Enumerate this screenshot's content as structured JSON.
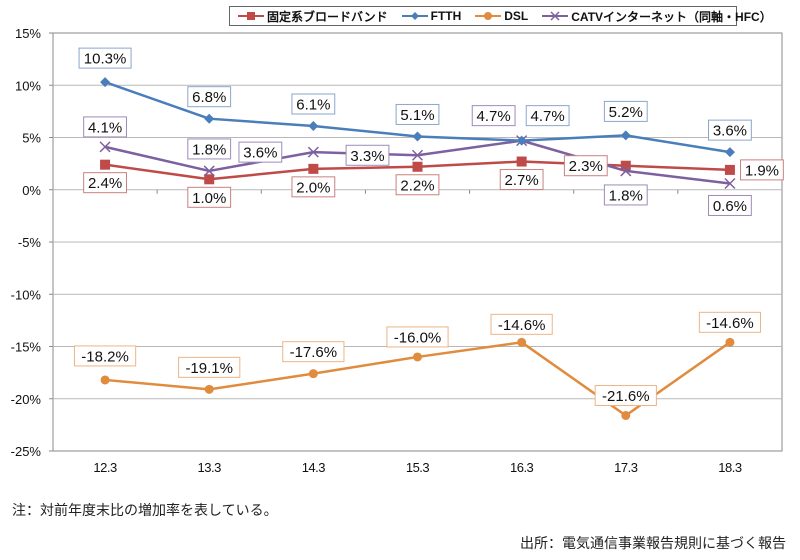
{
  "chart_data": {
    "type": "line",
    "title": "",
    "xlabel": "",
    "ylabel": "",
    "categories": [
      "12.3",
      "13.3",
      "14.3",
      "15.3",
      "16.3",
      "17.3",
      "18.3"
    ],
    "ylim": [
      -25,
      15
    ],
    "y_ticks": [
      15,
      10,
      5,
      0,
      -5,
      -10,
      -15,
      -20,
      -25
    ],
    "y_tick_labels": [
      "15%",
      "10%",
      "5%",
      "0%",
      "-5%",
      "-10%",
      "-15%",
      "-20%",
      "-25%"
    ],
    "grid": true,
    "legend_position": "top",
    "series": [
      {
        "name": "固定系ブロードバンド",
        "color": "#be4b48",
        "marker": "square",
        "values": [
          2.4,
          1.0,
          2.0,
          2.2,
          2.7,
          2.3,
          1.9
        ],
        "labels": [
          "2.4%",
          "1.0%",
          "2.0%",
          "2.2%",
          "2.7%",
          "2.3%",
          "1.9%"
        ]
      },
      {
        "name": "FTTH",
        "color": "#4a7ebb",
        "marker": "diamond",
        "values": [
          10.3,
          6.8,
          6.1,
          5.1,
          4.7,
          5.2,
          3.6
        ],
        "labels": [
          "10.3%",
          "6.8%",
          "6.1%",
          "5.1%",
          "4.7%",
          "5.2%",
          "3.6%"
        ]
      },
      {
        "name": "DSL",
        "color": "#e08b3e",
        "marker": "circle",
        "values": [
          -18.2,
          -19.1,
          -17.6,
          -16.0,
          -14.6,
          -21.6,
          -14.6
        ],
        "labels": [
          "-18.2%",
          "-19.1%",
          "-17.6%",
          "-16.0%",
          "-14.6%",
          "-21.6%",
          "-14.6%"
        ]
      },
      {
        "name": "CATVインターネット（同軸・HFC）",
        "color": "#7d60a0",
        "marker": "x",
        "values": [
          4.1,
          1.8,
          3.6,
          3.3,
          4.7,
          1.8,
          0.6
        ],
        "labels": [
          "4.1%",
          "1.8%",
          "3.6%",
          "3.3%",
          "4.7%",
          "1.8%",
          "0.6%"
        ]
      }
    ],
    "annotations": {
      "note": "注：対前年度末比の増加率を表している。",
      "source": "出所：電気通信事業報告規則に基づく報告"
    }
  }
}
